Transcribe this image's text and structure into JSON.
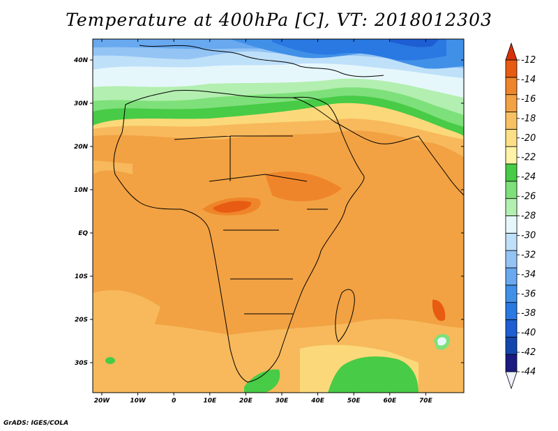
{
  "title": "Temperature at 400hPa [C], VT: 2018012303",
  "credit": "GrADS: IGES/COLA",
  "map": {
    "lon_ticks": [
      "20W",
      "10W",
      "0",
      "10E",
      "20E",
      "30E",
      "40E",
      "50E",
      "60E",
      "70E"
    ],
    "lat_ticks": [
      "40N",
      "30N",
      "20N",
      "10N",
      "EQ",
      "10S",
      "20S",
      "30S"
    ]
  },
  "colorbar": {
    "labels": [
      "-12",
      "-14",
      "-16",
      "-18",
      "-20",
      "-22",
      "-24",
      "-26",
      "-28",
      "-30",
      "-32",
      "-34",
      "-36",
      "-38",
      "-40",
      "-42",
      "-44"
    ],
    "colors": [
      "#f0f0ff",
      "#1a1a80",
      "#1346ad",
      "#1e5ed3",
      "#2a78e1",
      "#4190e8",
      "#68a9ef",
      "#94c4f4",
      "#bfe0f9",
      "#e6f7fc",
      "#b3efb0",
      "#7ee07a",
      "#48cb46",
      "#fff3a8",
      "#fcdf86",
      "#f7c163",
      "#f2a243",
      "#ef852a",
      "#e85b12",
      "#d8310a"
    ]
  },
  "colors": {
    "warm_orange": "#f19933",
    "hot_red": "#e4581a",
    "light_orange": "#f7b95c",
    "yellow": "#fbd97a",
    "green": "#48cb46",
    "light_green": "#99e08f",
    "cold_blue": "#4a8fe6"
  }
}
